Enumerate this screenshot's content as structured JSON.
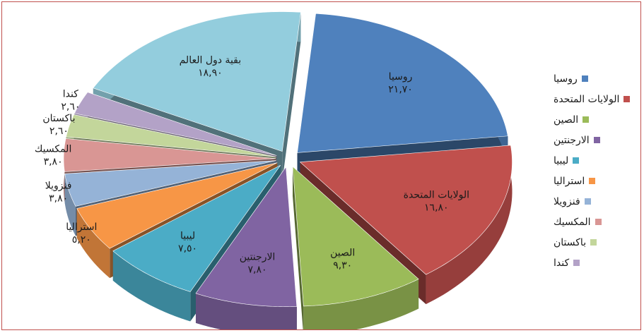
{
  "chart_data": {
    "type": "pie",
    "title": "",
    "legend_position": "right",
    "categories": [
      "روسيا",
      "الولايات المتحدة",
      "الصين",
      "الارجنتين",
      "ليبيا",
      "استراليا",
      "فنزويلا",
      "المكسيك",
      "باكستان",
      "كندا",
      "بقية دول العالم"
    ],
    "values": [
      21.7,
      16.8,
      9.3,
      7.8,
      7.5,
      5.2,
      3.8,
      3.8,
      2.6,
      2.6,
      18.9
    ],
    "value_labels": [
      "٢١,٧٠",
      "١٦,٨٠",
      "٩,٣٠",
      "٧,٨٠",
      "٧,٥٠",
      "٥,٢٠",
      "٣,٨٠",
      "٣,٨٠",
      "٢,٦٠",
      "٢,٦٠",
      "١٨,٩٠"
    ],
    "colors": [
      "#4f81bd",
      "#c0504d",
      "#9bbb59",
      "#8064a2",
      "#4bacc6",
      "#f79646",
      "#95b3d7",
      "#d99694",
      "#c3d69b",
      "#b3a2c7",
      "#93cddd"
    ],
    "legend": [
      "روسيا",
      "الولايات المتحدة",
      "الصين",
      "الارجنتين",
      "ليبيا",
      "استراليا",
      "فنزويلا",
      "المكسيك",
      "باكستان",
      "كندا"
    ],
    "exploded": true,
    "style": "3d"
  }
}
